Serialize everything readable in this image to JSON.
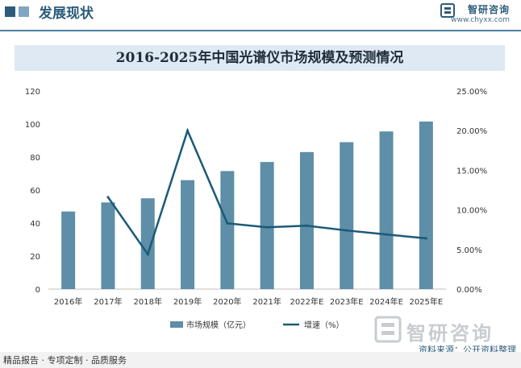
{
  "header": {
    "title": "发展现状",
    "brand_name": "智研咨询",
    "brand_url": "www.chyxx.com"
  },
  "footer": {
    "left": "精品报告 · 专项定制 · 品质服务",
    "source": "资料来源：公开资料整理"
  },
  "watermark": {
    "text": "智研咨询"
  },
  "colors": {
    "bar": "#5e8ea8",
    "line": "#1a5a78",
    "header": "#2c5c7a"
  },
  "chart_data": {
    "type": "bar",
    "title": "2016-2025年中国光谱仪市场规模及预测情况",
    "categories": [
      "2016年",
      "2017年",
      "2018年",
      "2019年",
      "2020年",
      "2021年",
      "2022年E",
      "2023年E",
      "2024年E",
      "2025年E"
    ],
    "series": [
      {
        "name": "市场规模（亿元）",
        "type": "bar",
        "axis": "left",
        "values": [
          47,
          52.5,
          55,
          66,
          71.5,
          77,
          83,
          89,
          95.5,
          101.5
        ]
      },
      {
        "name": "增速（%）",
        "type": "line",
        "axis": "right",
        "values": [
          null,
          11.6,
          4.4,
          20.0,
          8.3,
          7.8,
          8.0,
          7.4,
          6.9,
          6.4
        ]
      }
    ],
    "y_left": {
      "min": 0,
      "max": 120,
      "ticks": [
        "0",
        "20",
        "40",
        "60",
        "80",
        "100",
        "120"
      ]
    },
    "y_right": {
      "min": 0,
      "max": 25,
      "ticks": [
        "0.00%",
        "5.00%",
        "10.00%",
        "15.00%",
        "20.00%",
        "25.00%"
      ]
    },
    "grid": false,
    "legend": "bottom"
  }
}
